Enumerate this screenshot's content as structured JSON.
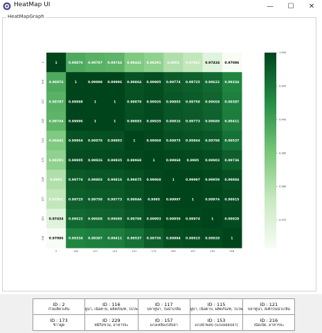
{
  "window": {
    "title": "HeatMap UI",
    "minimize_glyph": "—",
    "maximize_glyph": "☐",
    "close_glyph": "✕",
    "icon": "app-logo-icon"
  },
  "groupbox": {
    "label": "HeatMapGraph"
  },
  "chart_data": {
    "type": "heatmap",
    "row_labels": [
      "2",
      "116",
      "117",
      "115",
      "121",
      "173",
      "229",
      "157",
      "153",
      "216"
    ],
    "col_labels": [
      "2",
      "116",
      "117",
      "115",
      "121",
      "173",
      "229",
      "157",
      "153",
      "216"
    ],
    "matrix": [
      [
        1,
        0.98876,
        0.98787,
        0.98744,
        0.98441,
        0.98291,
        0.9801,
        0.97861,
        0.97434,
        0.97086
      ],
      [
        0.98876,
        1,
        0.99998,
        0.99996,
        0.99864,
        0.99905,
        0.99774,
        0.99725,
        0.99622,
        0.99334
      ],
      [
        0.98787,
        0.99998,
        1,
        1,
        0.99878,
        0.99926,
        0.99803,
        0.99758,
        0.99668,
        0.99387
      ],
      [
        0.98744,
        0.99996,
        1,
        1,
        0.99883,
        0.99935,
        0.99816,
        0.99773,
        0.99689,
        0.99411
      ],
      [
        0.98441,
        0.99864,
        0.99878,
        0.99883,
        1,
        0.99968,
        0.99875,
        0.99844,
        0.99798,
        0.99537
      ],
      [
        0.98291,
        0.99905,
        0.99926,
        0.99935,
        0.99969,
        1,
        0.99968,
        0.9995,
        0.99903,
        0.99736
      ],
      [
        0.9801,
        0.99774,
        0.99803,
        0.99816,
        0.99875,
        0.99968,
        1,
        0.99997,
        0.99959,
        0.99884
      ],
      [
        0.97861,
        0.99725,
        0.99758,
        0.99773,
        0.99844,
        0.9995,
        0.99997,
        1,
        0.99974,
        0.99915
      ],
      [
        0.97434,
        0.99622,
        0.99668,
        0.99689,
        0.99798,
        0.99903,
        0.99959,
        0.99974,
        1,
        0.99928
      ],
      [
        0.97086,
        0.99334,
        0.99387,
        0.99411,
        0.99537,
        0.99736,
        0.99884,
        0.99915,
        0.99928,
        1
      ]
    ],
    "vmin": 0.97086,
    "vmax": 1.0,
    "colorbar_ticks": [
      "1.000",
      "0.995",
      "0.990",
      "0.985",
      "0.980",
      "0.975"
    ],
    "colorbar_tick_values": [
      1.0,
      0.995,
      0.99,
      0.985,
      0.98,
      0.975
    ],
    "colormap": [
      "#f7fcf5",
      "#c7e9c0",
      "#74c476",
      "#238b45",
      "#00441b"
    ],
    "annotation_color_light": "#ffffff",
    "annotation_color_dark": "#000000",
    "legend": "colorbar-right",
    "grid": false
  },
  "ids": [
    {
      "id": "ID : 2",
      "name": "ก๋วยเตี๋ยวเส้น"
    },
    {
      "id": "ID : 116",
      "name": "ผูบ่า, เนื้อตาบ, ผลิตภัณฑ, ไบโพ"
    },
    {
      "id": "ID : 117",
      "name": "ปลาทูน่า, ในน้ำเกลือ"
    },
    {
      "id": "ID : 115",
      "name": "ผูบ่า, เนื้อตาบ, ผลิตภัณฑ, ไบโพ"
    },
    {
      "id": "ID : 121",
      "name": "ปลาทูน่า, สเต็กในน้ำเกลือ"
    },
    {
      "id": "ID : 173",
      "name": "ข้าวผูด"
    },
    {
      "id": "ID : 229",
      "name": "หมีกึ่งขาม, อาหารจะ"
    },
    {
      "id": "ID : 157",
      "name": "แกงเหลืองใส่ปลา"
    },
    {
      "id": "ID : 153",
      "name": "แกงน้ำพลบ (แกงลอยปลา)"
    },
    {
      "id": "ID : 216",
      "name": "เนื้อเป็ด, อาหารจะ"
    }
  ]
}
